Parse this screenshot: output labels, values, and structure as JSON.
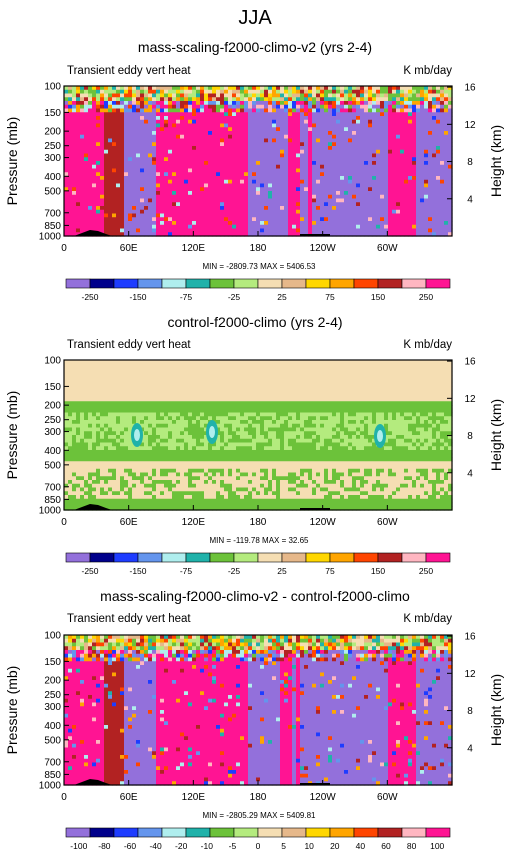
{
  "figure": {
    "season_title": "JJA"
  },
  "panels": [
    {
      "title": "mass-scaling-f2000-climo-v2 (yrs 2-4)",
      "left_label": "Transient eddy vert heat",
      "right_label": "K mb/day",
      "stats": "MIN = -2809.73  MAX = 5406.53",
      "ylabel": "Pressure (mb)",
      "ylabel_right": "Height (km)",
      "field": "large",
      "colorbar": {
        "labels": [
          "-250",
          "-150",
          "-75",
          "-25",
          "25",
          "75",
          "150",
          "250"
        ]
      }
    },
    {
      "title": "control-f2000-climo (yrs 2-4)",
      "left_label": "Transient eddy vert heat",
      "right_label": "K mb/day",
      "stats": "MIN = -119.78  MAX = 32.65",
      "ylabel": "Pressure (mb)",
      "ylabel_right": "Height (km)",
      "field": "small",
      "colorbar": {
        "labels": [
          "-250",
          "-150",
          "-75",
          "-25",
          "25",
          "75",
          "150",
          "250"
        ]
      }
    },
    {
      "title": "mass-scaling-f2000-climo-v2 - control-f2000-climo",
      "left_label": "Transient eddy vert heat",
      "right_label": "K mb/day",
      "stats": "MIN = -2805.29  MAX = 5409.81",
      "ylabel": "Pressure (mb)",
      "ylabel_right": "Height (km)",
      "field": "large",
      "colorbar": {
        "labels": [
          "-100",
          "-80",
          "-60",
          "-40",
          "-20",
          "-10",
          "-5",
          "0",
          "5",
          "10",
          "20",
          "40",
          "60",
          "80",
          "100"
        ]
      }
    }
  ],
  "axes": {
    "y_pressure_ticks": [
      "100",
      "150",
      "200",
      "250",
      "300",
      "400",
      "500",
      "700",
      "850",
      "1000"
    ],
    "y_height_ticks": [
      "16",
      "12",
      "8",
      "4"
    ],
    "x_ticks": [
      "0",
      "60E",
      "120E",
      "180",
      "120W",
      "60W"
    ]
  },
  "colors": {
    "abs_palette": [
      "#9370DB",
      "#00008B",
      "#1E3CFF",
      "#6495ED",
      "#AFEEEE",
      "#20B2AA",
      "#6CC23A",
      "#B4EB7E",
      "#F5DEB3",
      "#E6B88A",
      "#FFD700",
      "#FFA500",
      "#FF4500",
      "#B22222",
      "#FFB6C1",
      "#FF1493"
    ],
    "diff_palette": [
      "#9370DB",
      "#00008B",
      "#1E3CFF",
      "#6495ED",
      "#AFEEEE",
      "#20B2AA",
      "#6CC23A",
      "#B4EB7E",
      "#F5DEB3",
      "#E6B88A",
      "#FFD700",
      "#FFA500",
      "#FF4500",
      "#B22222",
      "#FFB6C1",
      "#FF1493"
    ],
    "topography": "#000000"
  },
  "chart_data": [
    {
      "type": "heatmap",
      "title": "mass-scaling-f2000-climo-v2 (yrs 2-4)",
      "ylabel": "Pressure (mb)",
      "y_scale": "log",
      "ylim": [
        1000,
        100
      ],
      "xlim": [
        0,
        360
      ],
      "x_ticks": [
        "0",
        "60E",
        "120E",
        "180",
        "120W",
        "60W"
      ],
      "colorbar_levels": [
        -250,
        -150,
        -75,
        -25,
        25,
        75,
        150,
        250
      ],
      "min": -2809.73,
      "max": 5406.53
    },
    {
      "type": "heatmap",
      "title": "control-f2000-climo (yrs 2-4)",
      "ylabel": "Pressure (mb)",
      "y_scale": "log",
      "ylim": [
        1000,
        100
      ],
      "xlim": [
        0,
        360
      ],
      "x_ticks": [
        "0",
        "60E",
        "120E",
        "180",
        "120W",
        "60W"
      ],
      "colorbar_levels": [
        -250,
        -150,
        -75,
        -25,
        25,
        75,
        150,
        250
      ],
      "min": -119.78,
      "max": 32.65
    },
    {
      "type": "heatmap",
      "title": "mass-scaling-f2000-climo-v2 - control-f2000-climo",
      "ylabel": "Pressure (mb)",
      "y_scale": "log",
      "ylim": [
        1000,
        100
      ],
      "xlim": [
        0,
        360
      ],
      "x_ticks": [
        "0",
        "60E",
        "120E",
        "180",
        "120W",
        "60W"
      ],
      "colorbar_levels": [
        -100,
        -80,
        -60,
        -40,
        -20,
        -10,
        -5,
        0,
        5,
        10,
        20,
        40,
        60,
        80,
        100
      ],
      "min": -2805.29,
      "max": 5409.81
    }
  ]
}
